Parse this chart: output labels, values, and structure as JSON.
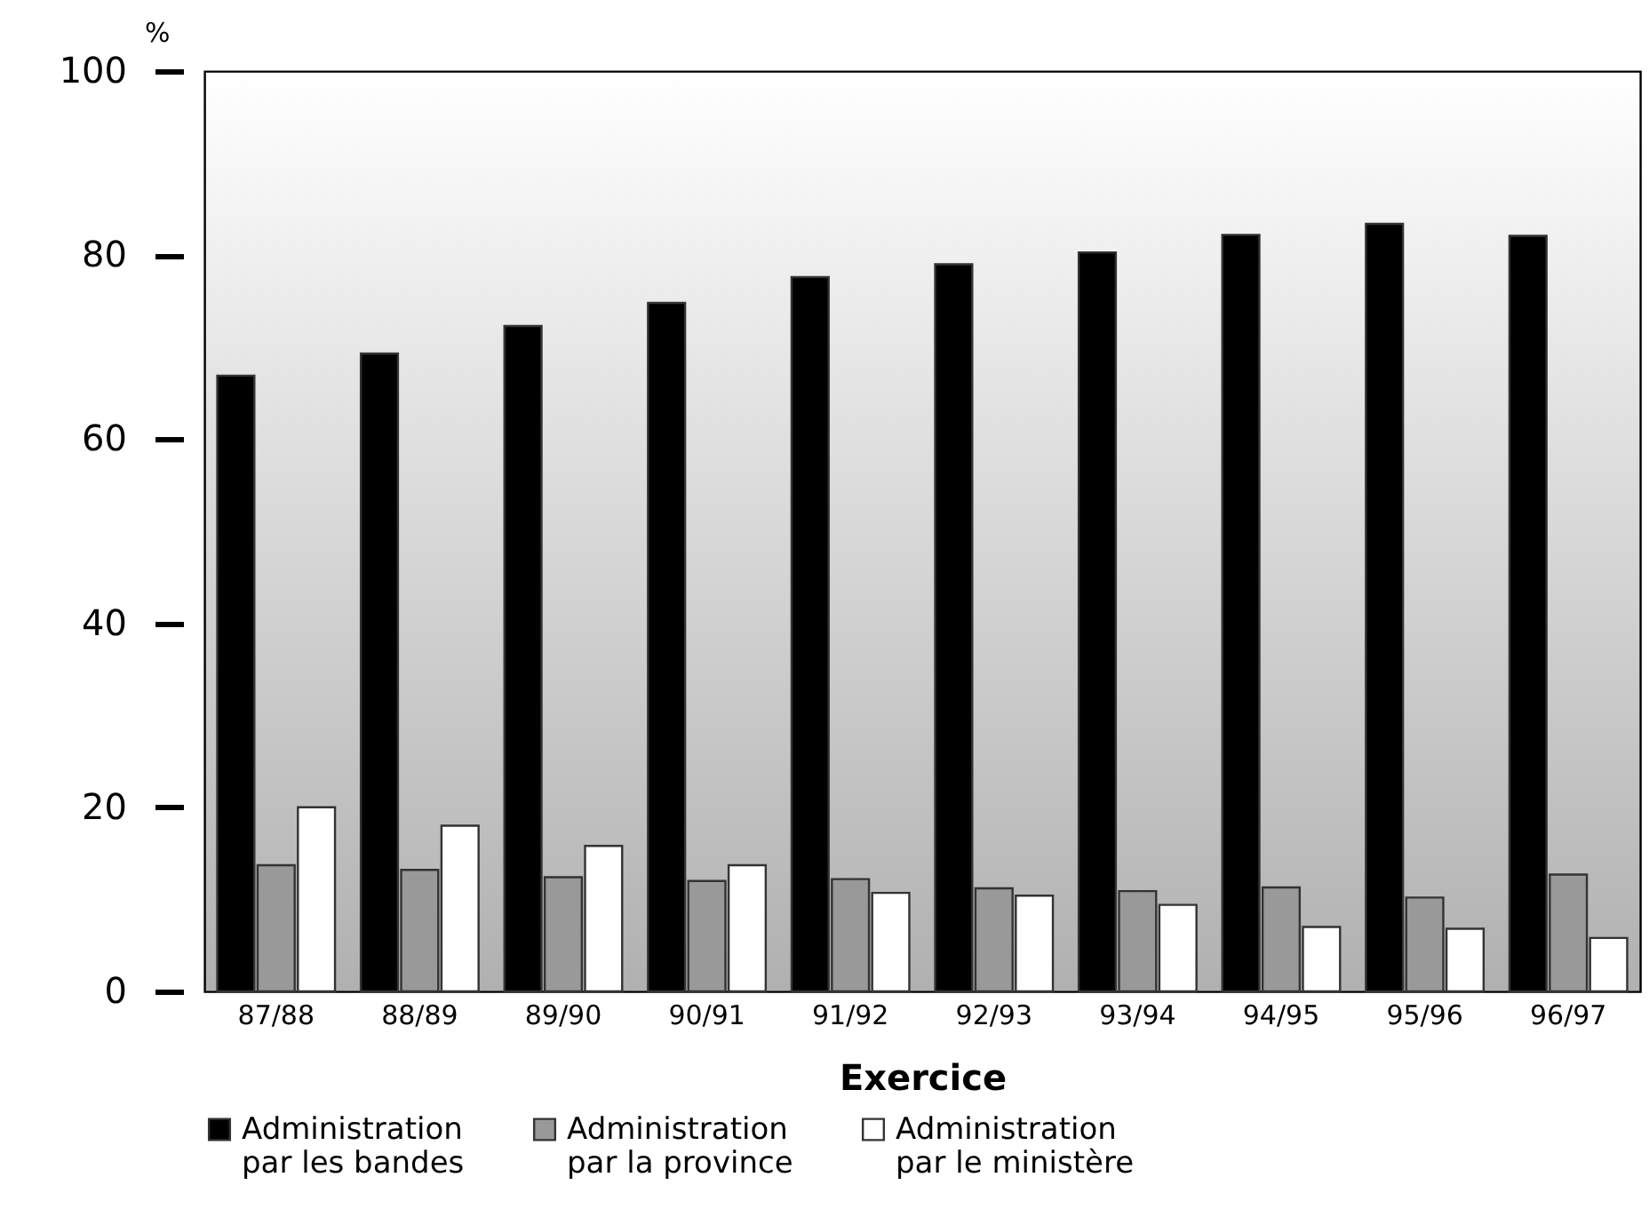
{
  "chart_data": {
    "type": "bar",
    "ylabel": "%",
    "xlabel": "Exercice",
    "categories": [
      "87/88",
      "88/89",
      "89/90",
      "90/91",
      "91/92",
      "92/93",
      "93/94",
      "94/95",
      "95/96",
      "96/97"
    ],
    "series": [
      {
        "name": "Administration par les bandes",
        "color": "#000000",
        "values": [
          66.9,
          69.3,
          72.3,
          74.8,
          77.6,
          79.0,
          80.3,
          82.2,
          83.4,
          82.1
        ]
      },
      {
        "name": "Administration par la province",
        "color": "#999999",
        "values": [
          13.7,
          13.2,
          12.4,
          12.0,
          12.2,
          11.2,
          10.9,
          11.3,
          10.2,
          12.7
        ]
      },
      {
        "name": "Administration par le ministère",
        "color": "#ffffff",
        "values": [
          20.0,
          18.0,
          15.8,
          13.7,
          10.7,
          10.4,
          9.4,
          7.0,
          6.8,
          5.8
        ]
      }
    ],
    "ylim": [
      0,
      100
    ],
    "yticks": [
      0,
      20,
      40,
      60,
      80,
      100
    ],
    "grid": false,
    "legend": "bottom"
  }
}
